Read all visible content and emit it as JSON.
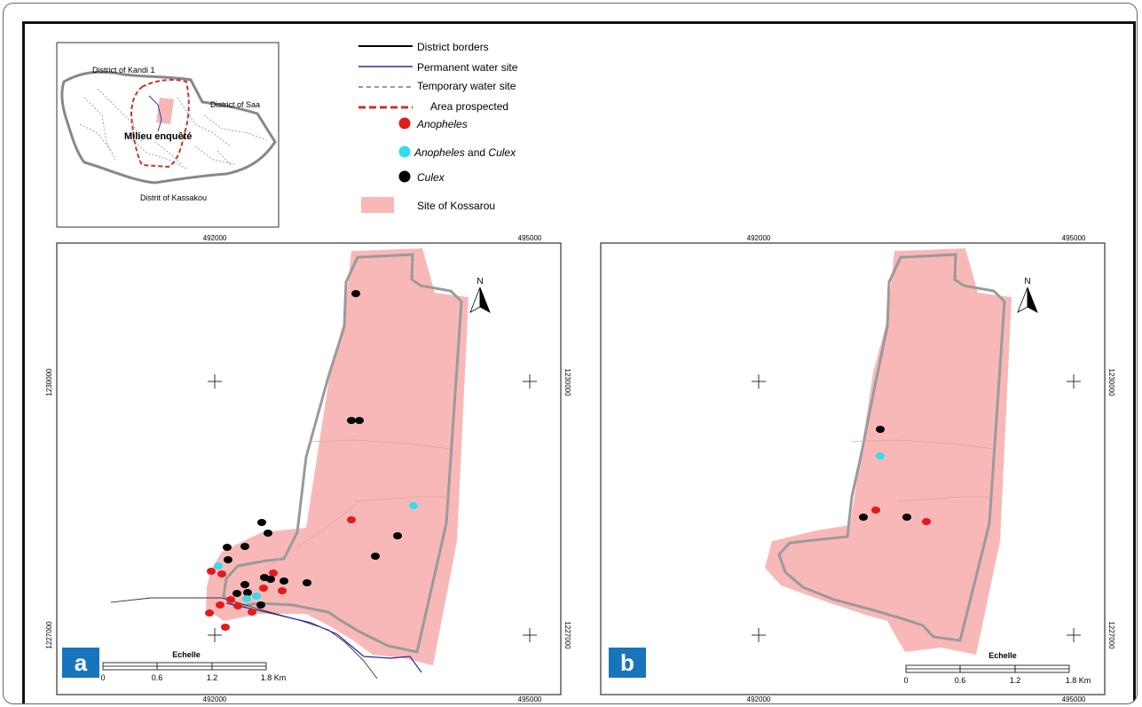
{
  "inset": {
    "districts": {
      "kandi": "District of Kandi 1",
      "saa": "District of Saa",
      "kassakou": "Distrit of Kassakou",
      "center": "Milieu enquêté"
    }
  },
  "legend": [
    {
      "key": "district-borders",
      "label": "District borders"
    },
    {
      "key": "permanent-water",
      "label": "Permanent water site"
    },
    {
      "key": "temporary-water",
      "label": "Temporary water site"
    },
    {
      "key": "area-prospected",
      "label": "Area prospected"
    },
    {
      "key": "anopheles",
      "label": "Anopheles",
      "color": "#e31a1c"
    },
    {
      "key": "anopheles-culex-a",
      "label": "Anopheles",
      "label_rest": " and ",
      "label_b": "Culex",
      "color": "#33ddee"
    },
    {
      "key": "culex",
      "label": "Culex",
      "color": "#000000"
    },
    {
      "key": "site",
      "label": "Site of Kossarou",
      "color": "#f9b8b8"
    }
  ],
  "maps": {
    "a": {
      "badge": "a",
      "coords": {
        "x_left": "492000",
        "x_right": "495000",
        "y_top": "1230000",
        "y_bottom": "1227000"
      },
      "scale": {
        "title": "Echelle",
        "ticks": [
          "0",
          "0.6",
          "1.2",
          "1.8 Km"
        ]
      },
      "north": "N"
    },
    "b": {
      "badge": "b",
      "coords": {
        "x_left": "492000",
        "x_right": "495000",
        "y_top": "1230000",
        "y_bottom": "1227000"
      },
      "scale": {
        "title": "Echelle",
        "ticks": [
          "0",
          "0.6",
          "1.2",
          "1.8 Km"
        ]
      },
      "north": "N"
    }
  },
  "colors": {
    "anopheles": "#e31a1c",
    "mixed": "#33ddee",
    "culex": "#000000",
    "site": "#f9b8b8",
    "border": "#999999",
    "prospected": "#c0392b",
    "permanent_water": "#2a2aa0",
    "badge": "#1874bc"
  }
}
